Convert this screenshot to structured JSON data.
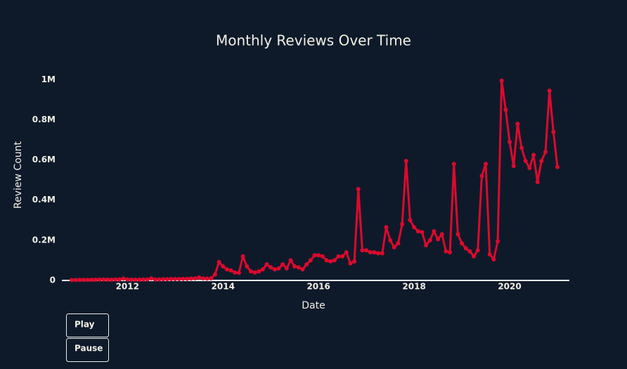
{
  "chart_data": {
    "type": "line",
    "title": "Monthly Reviews Over Time",
    "x_label": "Date",
    "y_label": "Review Count",
    "x": [
      "2010-11",
      "2010-12",
      "2011-01",
      "2011-02",
      "2011-03",
      "2011-04",
      "2011-05",
      "2011-06",
      "2011-07",
      "2011-08",
      "2011-09",
      "2011-10",
      "2011-11",
      "2011-12",
      "2012-01",
      "2012-02",
      "2012-03",
      "2012-04",
      "2012-05",
      "2012-06",
      "2012-07",
      "2012-08",
      "2012-09",
      "2012-10",
      "2012-11",
      "2012-12",
      "2013-01",
      "2013-02",
      "2013-03",
      "2013-04",
      "2013-05",
      "2013-06",
      "2013-07",
      "2013-08",
      "2013-09",
      "2013-10",
      "2013-11",
      "2013-12",
      "2014-01",
      "2014-02",
      "2014-03",
      "2014-04",
      "2014-05",
      "2014-06",
      "2014-07",
      "2014-08",
      "2014-09",
      "2014-10",
      "2014-11",
      "2014-12",
      "2015-01",
      "2015-02",
      "2015-03",
      "2015-04",
      "2015-05",
      "2015-06",
      "2015-07",
      "2015-08",
      "2015-09",
      "2015-10",
      "2015-11",
      "2015-12",
      "2016-01",
      "2016-02",
      "2016-03",
      "2016-04",
      "2016-05",
      "2016-06",
      "2016-07",
      "2016-08",
      "2016-09",
      "2016-10",
      "2016-11",
      "2016-12",
      "2017-01",
      "2017-02",
      "2017-03",
      "2017-04",
      "2017-05",
      "2017-06",
      "2017-07",
      "2017-08",
      "2017-09",
      "2017-10",
      "2017-11",
      "2017-12",
      "2018-01",
      "2018-02",
      "2018-03",
      "2018-04",
      "2018-05",
      "2018-06",
      "2018-07",
      "2018-08",
      "2018-09",
      "2018-10",
      "2018-11",
      "2018-12",
      "2019-01",
      "2019-02",
      "2019-03",
      "2019-04",
      "2019-05",
      "2019-06",
      "2019-07",
      "2019-08",
      "2019-09",
      "2019-10",
      "2019-11",
      "2019-12",
      "2020-01",
      "2020-02",
      "2020-03",
      "2020-04",
      "2020-05",
      "2020-06",
      "2020-07",
      "2020-08",
      "2020-09",
      "2020-10",
      "2020-11",
      "2020-12",
      "2021-01"
    ],
    "series": [
      {
        "name": "Review Count",
        "color": "#dc0a2d",
        "values": [
          2000,
          2000,
          3000,
          3000,
          3000,
          3000,
          4000,
          4000,
          5000,
          4000,
          4000,
          5000,
          5000,
          9000,
          5000,
          4000,
          4000,
          4000,
          5000,
          5000,
          10000,
          5000,
          5000,
          6000,
          6000,
          7000,
          7000,
          7000,
          8000,
          8000,
          9000,
          10000,
          15000,
          10000,
          9000,
          10000,
          30000,
          92000,
          70000,
          55000,
          50000,
          40000,
          38000,
          120000,
          70000,
          45000,
          40000,
          45000,
          55000,
          80000,
          65000,
          55000,
          60000,
          80000,
          60000,
          100000,
          70000,
          65000,
          55000,
          80000,
          100000,
          125000,
          125000,
          120000,
          100000,
          95000,
          100000,
          120000,
          120000,
          140000,
          85000,
          95000,
          455000,
          150000,
          150000,
          140000,
          140000,
          135000,
          135000,
          265000,
          200000,
          165000,
          185000,
          280000,
          595000,
          300000,
          265000,
          245000,
          240000,
          175000,
          200000,
          245000,
          205000,
          230000,
          145000,
          140000,
          580000,
          230000,
          185000,
          160000,
          145000,
          120000,
          150000,
          520000,
          580000,
          130000,
          105000,
          195000,
          995000,
          850000,
          690000,
          570000,
          780000,
          660000,
          595000,
          560000,
          625000,
          490000,
          595000,
          640000,
          945000,
          740000,
          565000
        ]
      }
    ],
    "xlim": [
      "2010-08",
      "2021-04"
    ],
    "xticks": [
      "2012",
      "2014",
      "2016",
      "2018",
      "2020"
    ],
    "ylim": [
      0,
      1050000
    ],
    "yticks": [
      0,
      {
        "value": 200000,
        "label": "0.2M"
      },
      {
        "value": 400000,
        "label": "0.4M"
      },
      {
        "value": 600000,
        "label": "0.6M"
      },
      {
        "value": 800000,
        "label": "0.8M"
      },
      {
        "value": 1000000,
        "label": "1M"
      }
    ],
    "grid": false,
    "buttons": [
      "Play",
      "Pause"
    ]
  }
}
